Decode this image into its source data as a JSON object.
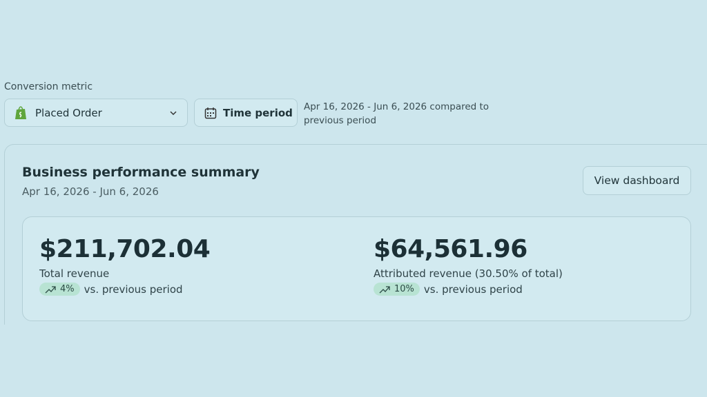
{
  "filter": {
    "label": "Conversion metric",
    "metric": "Placed Order",
    "time_button": "Time period",
    "range_text": "Apr 16, 2026 - Jun 6, 2026 compared to previous period"
  },
  "card": {
    "title": "Business performance summary",
    "subtitle": "Apr 16, 2026 - Jun 6, 2026",
    "button": "View dashboard",
    "metrics": [
      {
        "value": "$211,702.04",
        "label": "Total revenue",
        "change": "4%",
        "comparison": "vs. previous period"
      },
      {
        "value": "$64,561.96",
        "label": "Attributed revenue (30.50% of total)",
        "change": "10%",
        "comparison": "vs. previous period"
      }
    ]
  }
}
